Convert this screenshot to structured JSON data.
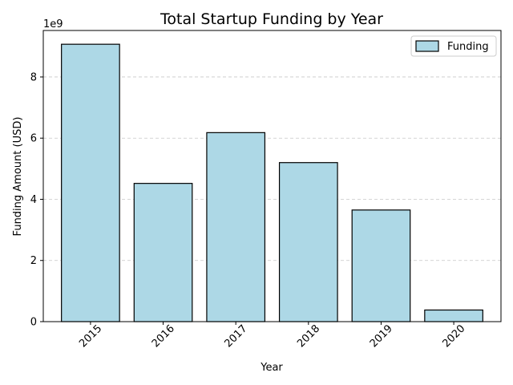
{
  "chart_data": {
    "type": "bar",
    "title": "Total Startup Funding by Year",
    "xlabel": "Year",
    "ylabel": "Funding Amount (USD)",
    "offset_label": "1e9",
    "categories": [
      "2015",
      "2016",
      "2017",
      "2018",
      "2019",
      "2020"
    ],
    "series": [
      {
        "name": "Funding",
        "values": [
          9070000000,
          4520000000,
          6180000000,
          5200000000,
          3650000000,
          380000000
        ]
      }
    ],
    "yticks": [
      0,
      2,
      4,
      6,
      8
    ],
    "ytick_scale": 1000000000,
    "ylim": [
      0,
      9520000000
    ],
    "grid": "y-dashed",
    "legend_position": "top-right",
    "colors": {
      "bar_fill": "#add8e6",
      "bar_edge": "#000000"
    }
  }
}
